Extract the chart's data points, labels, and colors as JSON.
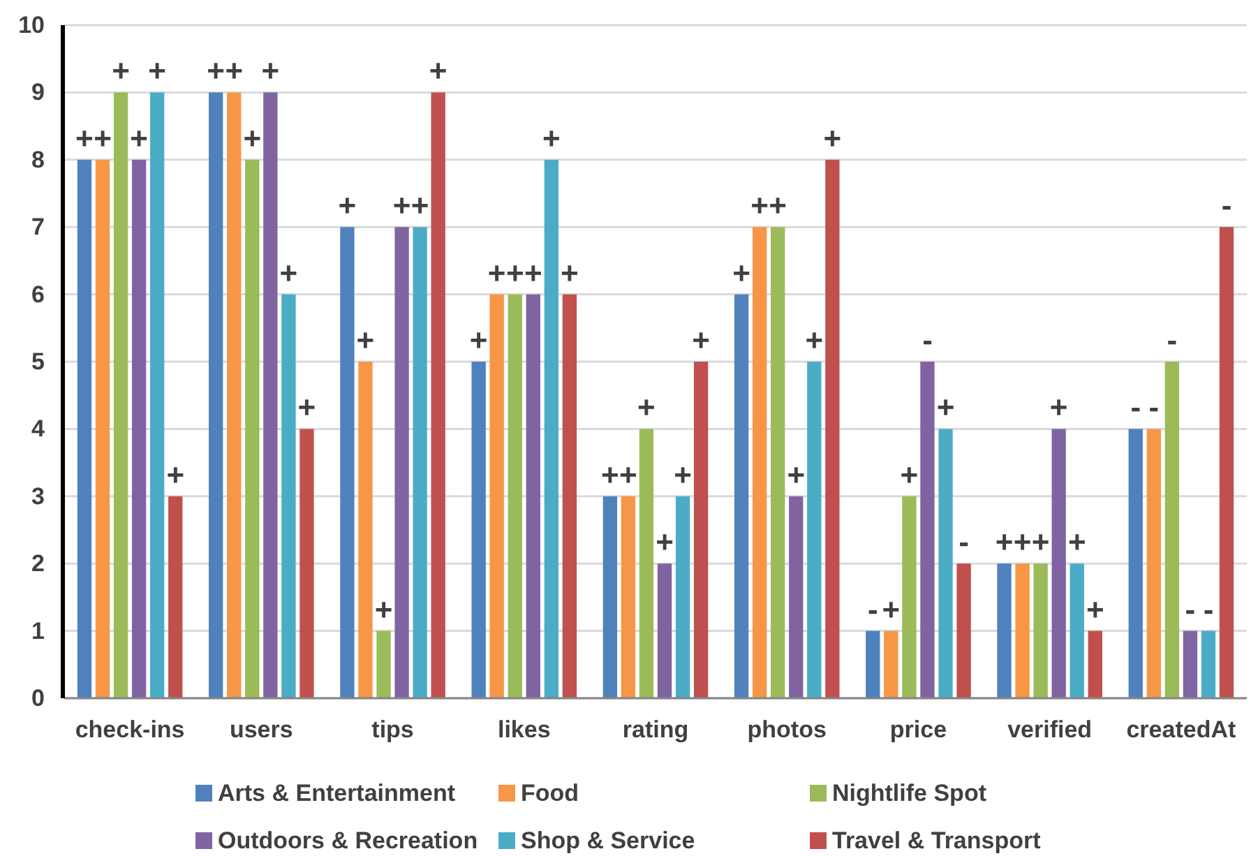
{
  "chart_data": {
    "type": "bar",
    "categories": [
      "check-ins",
      "users",
      "tips",
      "likes",
      "rating",
      "photos",
      "price",
      "verified",
      "createdAt"
    ],
    "series": [
      {
        "name": "Arts & Entertainment",
        "color": "#4f81bd",
        "values": [
          8,
          9,
          7,
          5,
          3,
          6,
          1,
          2,
          4
        ],
        "value_labels": [
          "+",
          "+",
          "+",
          "+",
          "+",
          "+",
          "-",
          "+",
          "-"
        ]
      },
      {
        "name": "Food",
        "color": "#f79646",
        "values": [
          8,
          9,
          5,
          6,
          3,
          7,
          1,
          2,
          4
        ],
        "value_labels": [
          "+",
          "+",
          "+",
          "+",
          "+",
          "+",
          "+",
          "+",
          "-"
        ]
      },
      {
        "name": "Nightlife Spot",
        "color": "#9bbb59",
        "values": [
          9,
          8,
          1,
          6,
          4,
          7,
          3,
          2,
          5
        ],
        "value_labels": [
          "+",
          "+",
          "+",
          "+",
          "+",
          "+",
          "+",
          "+",
          "-"
        ]
      },
      {
        "name": "Outdoors & Recreation",
        "color": "#8064a2",
        "values": [
          8,
          9,
          7,
          6,
          2,
          3,
          5,
          4,
          1
        ],
        "value_labels": [
          "+",
          "+",
          "+",
          "+",
          "+",
          "+",
          "-",
          "+",
          "-"
        ]
      },
      {
        "name": "Shop & Service",
        "color": "#4bacc6",
        "values": [
          9,
          6,
          7,
          8,
          3,
          5,
          4,
          2,
          1
        ],
        "value_labels": [
          "+",
          "+",
          "+",
          "+",
          "+",
          "+",
          "+",
          "+",
          "-"
        ]
      },
      {
        "name": "Travel & Transport",
        "color": "#c0504d",
        "values": [
          3,
          4,
          9,
          6,
          5,
          8,
          2,
          1,
          7
        ],
        "value_labels": [
          "+",
          "+",
          "+",
          "+",
          "+",
          "+",
          "-",
          "+",
          "-"
        ]
      }
    ],
    "ylim": [
      0,
      10
    ],
    "yticks": [
      0,
      1,
      2,
      3,
      4,
      5,
      6,
      7,
      8,
      9,
      10
    ],
    "grid": "y",
    "legend": "bottom"
  }
}
